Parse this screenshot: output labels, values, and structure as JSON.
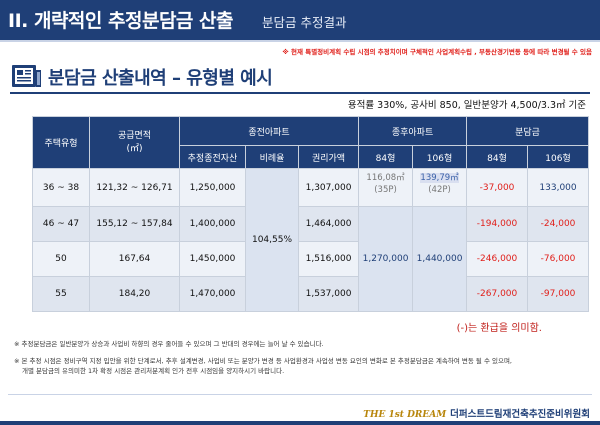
{
  "header": {
    "title": "II. 개략적인 추정분담금 산출",
    "subtitle": "분담금 추정결과"
  },
  "notice": "※ 현재 특별정비계획 수립 시점의 추정치이며 구체적인 사업계획수립 , 부동산경기변동 등에 따라 변경될 수 있음",
  "section": {
    "title": "분담금 산출내역 – 유형별 예시",
    "icon": "document-chart-icon"
  },
  "caption": "용적률 330%, 공사비 850, 일반분양가 4,500/3.3㎡ 기준",
  "table": {
    "headers": {
      "type": "주택유형",
      "area": "공급면적\n(㎡)",
      "existing": "종전아파트",
      "new_apt": "종후아파트",
      "contribution": "분담금",
      "est_asset": "추정종전자산",
      "ratio": "비례율",
      "rights": "권리가액",
      "p84": "84형",
      "p106": "106형",
      "c84": "84형",
      "c106": "106형"
    },
    "pyeong": {
      "p84_area": "116,08㎡",
      "p84_py": "(35P)",
      "p106_area": "139,79㎡",
      "p106_py": "(42P)"
    },
    "ratio_value": "104,55%",
    "new_84_price": "1,270,000",
    "new_106_price": "1,440,000",
    "rows": [
      {
        "type": "36 ~ 38",
        "area": "121,32 ~ 126,71",
        "est_asset": "1,250,000",
        "rights": "1,307,000",
        "c84": "-37,000",
        "c106": "133,000"
      },
      {
        "type": "46 ~ 47",
        "area": "155,12 ~ 157,84",
        "est_asset": "1,400,000",
        "rights": "1,464,000",
        "c84": "-194,000",
        "c106": "-24,000"
      },
      {
        "type": "50",
        "area": "167,64",
        "est_asset": "1,450,000",
        "rights": "1,516,000",
        "c84": "-246,000",
        "c106": "-76,000"
      },
      {
        "type": "55",
        "area": "184,20",
        "est_asset": "1,470,000",
        "rights": "1,537,000",
        "c84": "-267,000",
        "c106": "-97,000"
      }
    ]
  },
  "refund_note": "(-)는 환급을 의미함.",
  "notes": [
    "※ 추정분담금은 일반분양가 상승과 사업비 하향의 경우 줄어들 수 있으며 그 반대의 경우에는 늘어 날 수 있습니다.",
    "※ 본 추정 시점은 정비구역 지정 입안을 위한 단계로서, 추후 설계변경, 사업비 또는 분양가 변경 등 사업환경과 사업성 변동 요인의 변화로 본 추정분담금은 계속하여 변동 될 수 있으며,",
    "개별 분담금의 유의미한 1차 확정 시점은 관리처분계획 인가 전후 시점임을 양지하시기 바랍니다."
  ],
  "footer": {
    "brand": "THE 1st DREAM",
    "org": "더퍼스트드림재건축추진준비위원회"
  },
  "colors": {
    "primary": "#1f3f77",
    "negative": "#e0201b",
    "brand_gold": "#b8860b"
  }
}
